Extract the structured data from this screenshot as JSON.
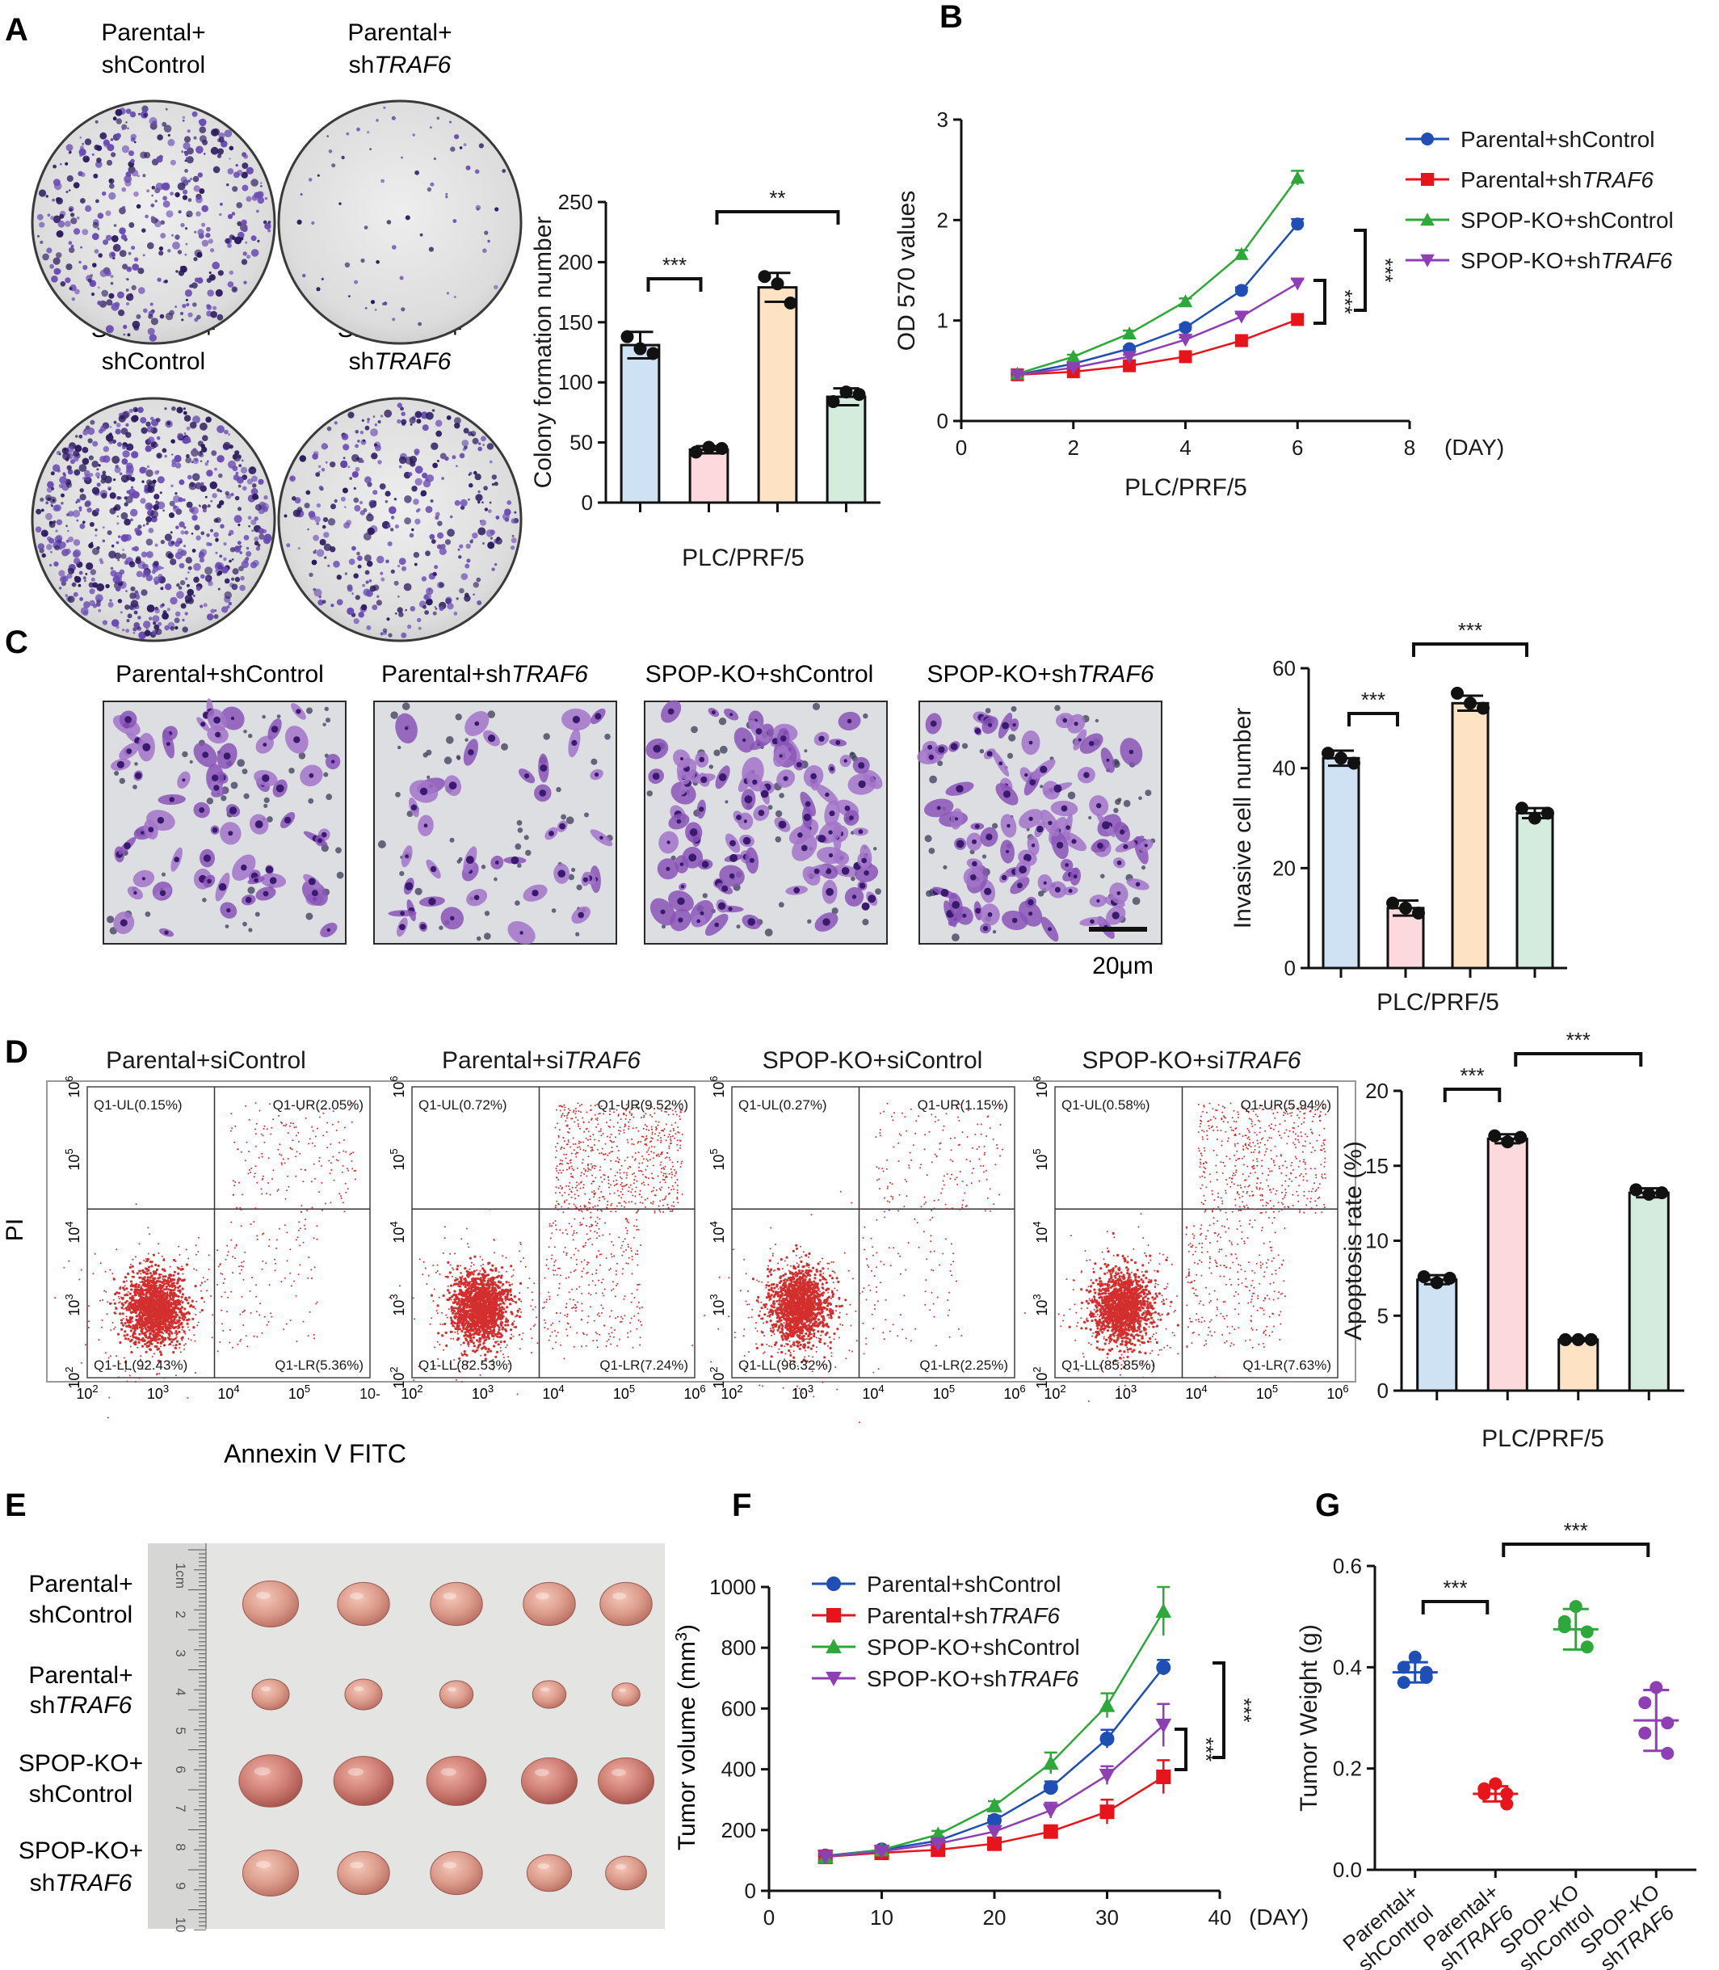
{
  "panel_letters": [
    "A",
    "B",
    "C",
    "D",
    "E",
    "F",
    "G"
  ],
  "panelA": {
    "images": [
      {
        "line1": "Parental+",
        "pre2": "sh",
        "ital2": "",
        "post2": "Control"
      },
      {
        "line1": "Parental+",
        "pre2": "sh",
        "ital2": "TRAF6",
        "post2": ""
      },
      {
        "line1": "SPOP-KO+",
        "pre2": "sh",
        "ital2": "",
        "post2": "Control"
      },
      {
        "line1": "SPOP-KO+",
        "pre2": "sh",
        "ital2": "TRAF6",
        "post2": ""
      }
    ]
  },
  "panelC": {
    "image_labels": [
      {
        "pre": "Parental+shControl",
        "ital": ""
      },
      {
        "pre": "Parental+sh",
        "ital": "TRAF6"
      },
      {
        "pre": "SPOP-KO+shControl",
        "ital": ""
      },
      {
        "pre": "SPOP-KO+sh",
        "ital": "TRAF6"
      }
    ],
    "scale_bar": "20μm"
  },
  "panelD": {
    "ylabel": "PI",
    "xlabel": "Annexin V FITC",
    "plots": [
      {
        "title_pre": "Parental+siControl",
        "title_ital": "",
        "ul": "Q1-UL(0.15%)",
        "ur": "Q1-UR(2.05%)",
        "ll": "Q1-LL(92.43%)",
        "lr": "Q1-LR(5.36%)"
      },
      {
        "title_pre": "Parental+si",
        "title_ital": "TRAF6",
        "ul": "Q1-UL(0.72%)",
        "ur": "Q1-UR(9.52%)",
        "ll": "Q1-LL(82.53%)",
        "lr": "Q1-LR(7.24%)"
      },
      {
        "title_pre": "SPOP-KO+siControl",
        "title_ital": "",
        "ul": "Q1-UL(0.27%)",
        "ur": "Q1-UR(1.15%)",
        "ll": "Q1-LL(96.32%)",
        "lr": "Q1-LR(2.25%)"
      },
      {
        "title_pre": "SPOP-KO+si",
        "title_ital": "TRAF6",
        "ul": "Q1-UL(0.58%)",
        "ur": "Q1-UR(5.94%)",
        "ll": "Q1-LL(85.85%)",
        "lr": "Q1-LR(7.63%)"
      }
    ],
    "axis_exponents": [
      "2",
      "3",
      "4",
      "5",
      "6"
    ],
    "base": "10",
    "last_x_label": "10-"
  },
  "panelE": {
    "ruler_labels": [
      "1cm",
      "2",
      "3",
      "4",
      "5",
      "6",
      "7",
      "8",
      "9",
      "10"
    ],
    "rows": [
      {
        "line1": "Parental+",
        "pre2": "shControl",
        "ital2": ""
      },
      {
        "line1": "Parental+",
        "pre2": "sh",
        "ital2": "TRAF6"
      },
      {
        "line1": "SPOP-KO+",
        "pre2": "shControl",
        "ital2": ""
      },
      {
        "line1": "SPOP-KO+",
        "pre2": "sh",
        "ital2": "TRAF6"
      }
    ]
  },
  "colors": {
    "blue": "#1f4fb4",
    "red": "#e8141b",
    "green": "#2ea83a",
    "purple": "#8e3fb4",
    "bar_fills": [
      "#cfe2f3",
      "#fbd9dd",
      "#fde3c4",
      "#d3ecdd"
    ],
    "scatter_red": "#d32f2f"
  },
  "chart_data": [
    {
      "id": "A",
      "type": "bar",
      "xlabel": "PLC/PRF/5",
      "ylabel": "Colony formation number",
      "ylim": [
        0,
        250
      ],
      "yticks": [
        "0",
        "50",
        "100",
        "150",
        "200",
        "250"
      ],
      "categories": [
        "Parental+shControl",
        "Parental+shTRAF6",
        "SPOP-KO+shControl",
        "SPOP-KO+shTRAF6"
      ],
      "values": [
        131,
        44,
        179,
        88
      ],
      "errors": [
        11,
        3,
        12,
        7
      ],
      "points": [
        [
          138,
          128,
          124
        ],
        [
          42,
          46,
          45
        ],
        [
          188,
          182,
          166
        ],
        [
          84,
          92,
          90
        ]
      ],
      "significance": [
        {
          "from": 0,
          "to": 1,
          "label": "***"
        },
        {
          "from": 1,
          "to": 3,
          "label": "**"
        }
      ]
    },
    {
      "id": "B",
      "type": "line",
      "xlabel": "PLC/PRF/5",
      "x_unit": "(DAY)",
      "ylabel": "OD 570 values",
      "xlim": [
        0,
        8
      ],
      "ylim": [
        0,
        3
      ],
      "xticks": [
        "0",
        "2",
        "4",
        "6",
        "8"
      ],
      "yticks": [
        "0",
        "1",
        "2",
        "3"
      ],
      "x": [
        1,
        2,
        3,
        4,
        5,
        6
      ],
      "series": [
        {
          "name_pre": "Parental+shControl",
          "name_ital": "",
          "values": [
            0.46,
            0.57,
            0.72,
            0.93,
            1.3,
            1.96
          ],
          "errors": [
            0.02,
            0.02,
            0.02,
            0.03,
            0.03,
            0.05
          ]
        },
        {
          "name_pre": "Parental+sh",
          "name_ital": "TRAF6",
          "values": [
            0.46,
            0.49,
            0.55,
            0.64,
            0.8,
            1.01
          ],
          "errors": [
            0.02,
            0.02,
            0.02,
            0.02,
            0.02,
            0.03
          ]
        },
        {
          "name_pre": "SPOP-KO+shControl",
          "name_ital": "",
          "values": [
            0.47,
            0.64,
            0.87,
            1.19,
            1.66,
            2.42
          ],
          "errors": [
            0.02,
            0.02,
            0.03,
            0.03,
            0.04,
            0.07
          ]
        },
        {
          "name_pre": "SPOP-KO+sh",
          "name_ital": "TRAF6",
          "values": [
            0.46,
            0.53,
            0.64,
            0.81,
            1.04,
            1.37
          ],
          "errors": [
            0.02,
            0.02,
            0.02,
            0.02,
            0.03,
            0.04
          ]
        }
      ],
      "significance": [
        "***",
        "***"
      ]
    },
    {
      "id": "C",
      "type": "bar",
      "xlabel": "PLC/PRF/5",
      "ylabel": "Invasive cell number",
      "ylim": [
        0,
        60
      ],
      "yticks": [
        "0",
        "20",
        "40",
        "60"
      ],
      "values": [
        42,
        12,
        53,
        31
      ],
      "errors": [
        1.5,
        1.5,
        1.5,
        1
      ],
      "points": [
        [
          43,
          42,
          41
        ],
        [
          13,
          12,
          11
        ],
        [
          55,
          53,
          52
        ],
        [
          32,
          30,
          31
        ]
      ],
      "significance": [
        {
          "from": 0,
          "to": 1,
          "label": "***"
        },
        {
          "from": 1,
          "to": 3,
          "label": "***"
        }
      ]
    },
    {
      "id": "D",
      "type": "bar",
      "xlabel": "PLC/PRF/5",
      "ylabel": "Apoptosis rate (%)",
      "ylim": [
        0,
        20
      ],
      "yticks": [
        "0",
        "5",
        "10",
        "15",
        "20"
      ],
      "values": [
        7.4,
        16.8,
        3.4,
        13.2
      ],
      "errors": [
        0.3,
        0.3,
        0.1,
        0.3
      ],
      "points": [
        [
          7.6,
          7.2,
          7.5
        ],
        [
          17.0,
          16.6,
          16.9
        ],
        [
          3.4,
          3.4,
          3.4
        ],
        [
          13.4,
          13.1,
          13.2
        ]
      ],
      "significance": [
        {
          "from": 0,
          "to": 1,
          "label": "***"
        },
        {
          "from": 1,
          "to": 3,
          "label": "***"
        }
      ]
    },
    {
      "id": "F",
      "type": "line",
      "ylabel_pre": "Tumor volume (mm",
      "ylabel_sup": "3",
      "ylabel_post": ")",
      "x_unit": "(DAY)",
      "xlim": [
        0,
        40
      ],
      "ylim": [
        0,
        1000
      ],
      "xticks": [
        "0",
        "10",
        "20",
        "30",
        "40"
      ],
      "yticks": [
        "0",
        "200",
        "400",
        "600",
        "800",
        "1000"
      ],
      "x": [
        5,
        10,
        15,
        20,
        25,
        30,
        35
      ],
      "series": [
        {
          "name_pre": "Parental+shControl",
          "name_ital": "",
          "values": [
            115,
            135,
            165,
            232,
            340,
            500,
            735
          ],
          "errors": [
            8,
            8,
            12,
            15,
            20,
            30,
            25
          ]
        },
        {
          "name_pre": "Parental+sh",
          "name_ital": "TRAF6",
          "values": [
            112,
            125,
            135,
            155,
            195,
            260,
            375
          ],
          "errors": [
            8,
            8,
            10,
            12,
            15,
            40,
            55
          ]
        },
        {
          "name_pre": "SPOP-KO+shControl",
          "name_ital": "",
          "values": [
            112,
            135,
            185,
            280,
            420,
            610,
            920
          ],
          "errors": [
            8,
            10,
            12,
            15,
            35,
            40,
            80
          ]
        },
        {
          "name_pre": "SPOP-KO+sh",
          "name_ital": "TRAF6",
          "values": [
            112,
            130,
            155,
            195,
            265,
            380,
            545
          ],
          "errors": [
            8,
            8,
            10,
            15,
            25,
            30,
            70
          ]
        }
      ],
      "significance": [
        "***",
        "***"
      ]
    },
    {
      "id": "G",
      "type": "scatter",
      "ylabel": "Tumor Weight (g)",
      "ylim": [
        0,
        0.6
      ],
      "yticks": [
        "0.0",
        "0.2",
        "0.4",
        "0.6"
      ],
      "groups": [
        {
          "l1": "Parental+",
          "l2_pre": "shControl",
          "l2_ital": "",
          "mean": 0.39,
          "sd": 0.02,
          "points": [
            0.42,
            0.4,
            0.39,
            0.37,
            0.38
          ]
        },
        {
          "l1": "Parental+",
          "l2_pre": "sh",
          "l2_ital": "TRAF6",
          "mean": 0.15,
          "sd": 0.015,
          "points": [
            0.17,
            0.16,
            0.15,
            0.15,
            0.13
          ]
        },
        {
          "l1": "SPOP-KO",
          "l2_pre": "shControl",
          "l2_ital": "",
          "mean": 0.475,
          "sd": 0.04,
          "points": [
            0.52,
            0.49,
            0.47,
            0.48,
            0.44
          ]
        },
        {
          "l1": "SPOP-KO",
          "l2_pre": "sh",
          "l2_ital": "TRAF6",
          "mean": 0.295,
          "sd": 0.06,
          "points": [
            0.36,
            0.33,
            0.29,
            0.27,
            0.23
          ]
        }
      ],
      "significance": [
        {
          "from": 0,
          "to": 1,
          "label": "***"
        },
        {
          "from": 1,
          "to": 3,
          "label": "***"
        }
      ]
    }
  ]
}
